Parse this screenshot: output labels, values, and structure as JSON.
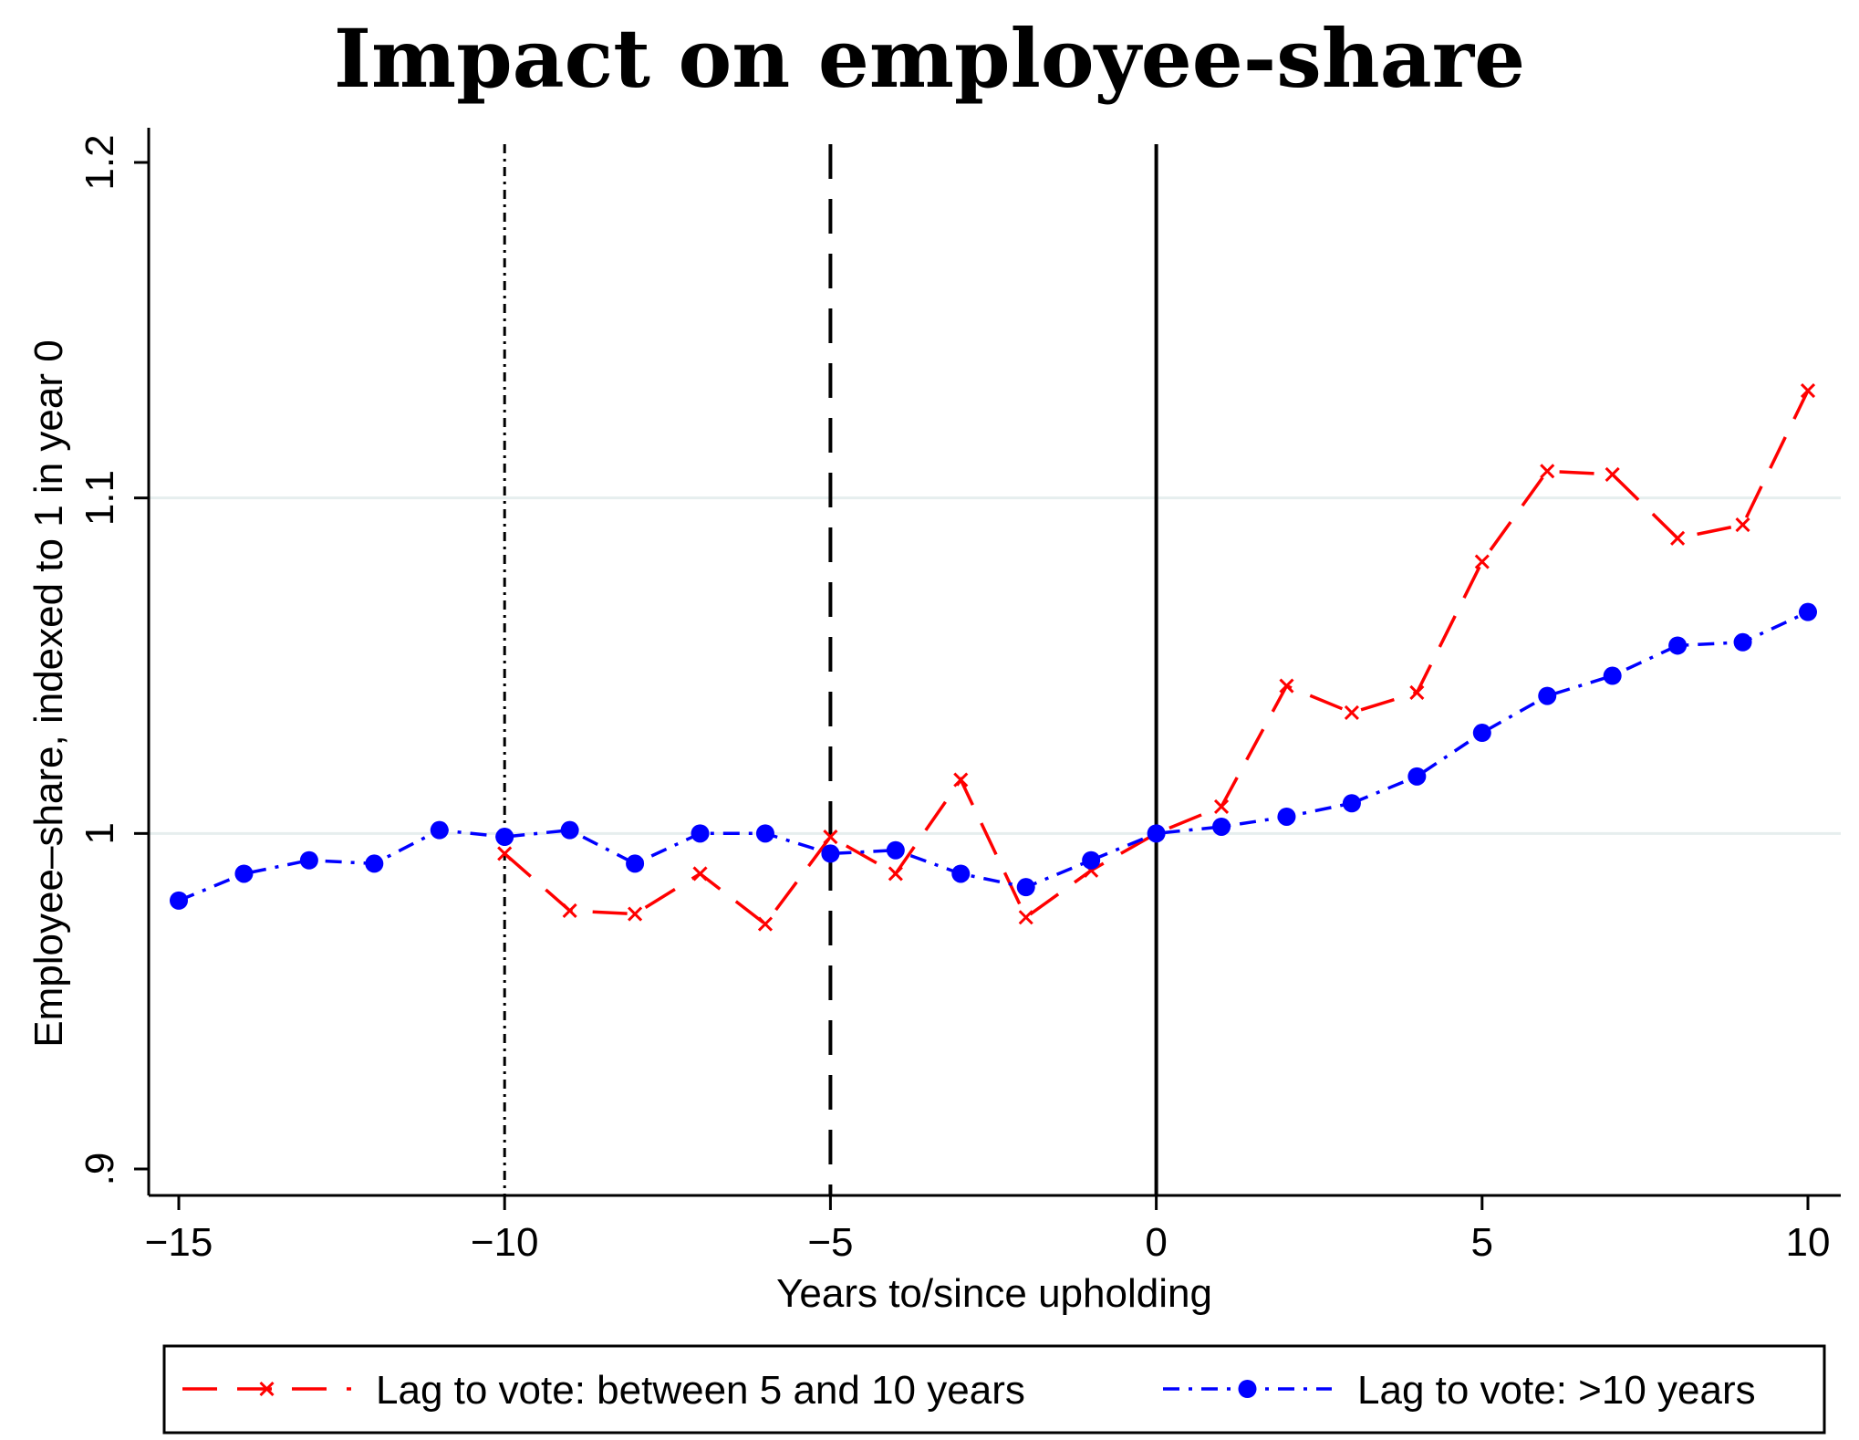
{
  "chart_data": {
    "type": "line",
    "title": "Impact on employee-share",
    "xlabel": "Years to/since upholding",
    "ylabel": "Employee–share, indexed to 1 in year 0",
    "xlim": [
      -15,
      10
    ],
    "ylim": [
      0.9,
      1.2
    ],
    "x_ticks": [
      -15,
      -10,
      -5,
      0,
      5,
      10
    ],
    "x_tick_labels": [
      "−15",
      "−10",
      "−5",
      "0",
      "5",
      "10"
    ],
    "y_ticks": [
      0.9,
      1.0,
      1.1,
      1.2
    ],
    "y_tick_labels": [
      ".9",
      "1",
      "1.1",
      "1.2"
    ],
    "y_gridlines": [
      1.0,
      1.1
    ],
    "reference_lines": [
      {
        "x": -10,
        "style": "dash-dot"
      },
      {
        "x": -5,
        "style": "long-dash"
      },
      {
        "x": 0,
        "style": "solid"
      }
    ],
    "legend_position": "bottom",
    "series": [
      {
        "name": "Lag to vote: between 5 and 10 years",
        "color": "#ff0000",
        "line_style": "long-dash",
        "marker": "x",
        "x": [
          -10,
          -9,
          -8,
          -7,
          -6,
          -5,
          -4,
          -3,
          -2,
          -1,
          0,
          1,
          2,
          3,
          4,
          5,
          6,
          7,
          8,
          9,
          10
        ],
        "values": [
          0.994,
          0.977,
          0.976,
          0.988,
          0.973,
          0.999,
          0.988,
          1.016,
          0.975,
          0.989,
          1.0,
          1.008,
          1.044,
          1.036,
          1.042,
          1.081,
          1.108,
          1.107,
          1.088,
          1.092,
          1.132
        ]
      },
      {
        "name": "Lag to vote: >10 years",
        "color": "#0000ff",
        "line_style": "dash-dot",
        "marker": "circle",
        "x": [
          -15,
          -14,
          -13,
          -12,
          -11,
          -10,
          -9,
          -8,
          -7,
          -6,
          -5,
          -4,
          -3,
          -2,
          -1,
          0,
          1,
          2,
          3,
          4,
          5,
          6,
          7,
          8,
          9,
          10
        ],
        "values": [
          0.98,
          0.988,
          0.992,
          0.991,
          1.001,
          0.999,
          1.001,
          0.991,
          1.0,
          1.0,
          0.994,
          0.995,
          0.988,
          0.984,
          0.992,
          1.0,
          1.002,
          1.005,
          1.009,
          1.017,
          1.03,
          1.041,
          1.047,
          1.056,
          1.057,
          1.066
        ]
      }
    ]
  }
}
